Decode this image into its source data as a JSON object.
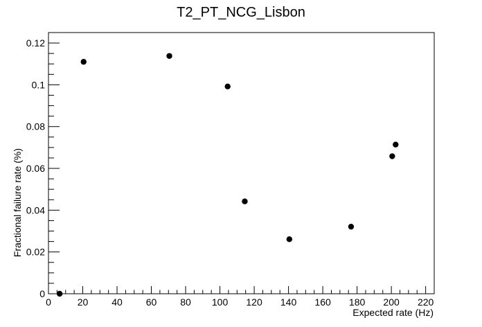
{
  "chart_data": {
    "type": "scatter",
    "title": "T2_PT_NCG_Lisbon",
    "xlabel": "Expected rate (Hz)",
    "ylabel": "Fractional failure rate (%)",
    "xlim": [
      0,
      225
    ],
    "ylim": [
      0,
      0.125
    ],
    "x_ticks": [
      0,
      20,
      40,
      60,
      80,
      100,
      120,
      140,
      160,
      180,
      200,
      220
    ],
    "y_ticks": [
      0,
      0.02,
      0.04,
      0.06,
      0.08,
      0.1,
      0.12
    ],
    "x_tick_labels": [
      "0",
      "20",
      "40",
      "60",
      "80",
      "100",
      "120",
      "140",
      "160",
      "180",
      "200",
      "220"
    ],
    "y_tick_labels": [
      "0",
      "0.02",
      "0.04",
      "0.06",
      "0.08",
      "0.1",
      "0.12"
    ],
    "grid": false,
    "points": [
      {
        "x": 6.5,
        "y": 0.0
      },
      {
        "x": 20.5,
        "y": 0.111
      },
      {
        "x": 70.5,
        "y": 0.1138
      },
      {
        "x": 104.5,
        "y": 0.0992
      },
      {
        "x": 114.5,
        "y": 0.0442
      },
      {
        "x": 140.5,
        "y": 0.0261
      },
      {
        "x": 176.5,
        "y": 0.0321
      },
      {
        "x": 200.5,
        "y": 0.0658
      },
      {
        "x": 202.5,
        "y": 0.0714
      }
    ],
    "marker_color": "#000000"
  }
}
